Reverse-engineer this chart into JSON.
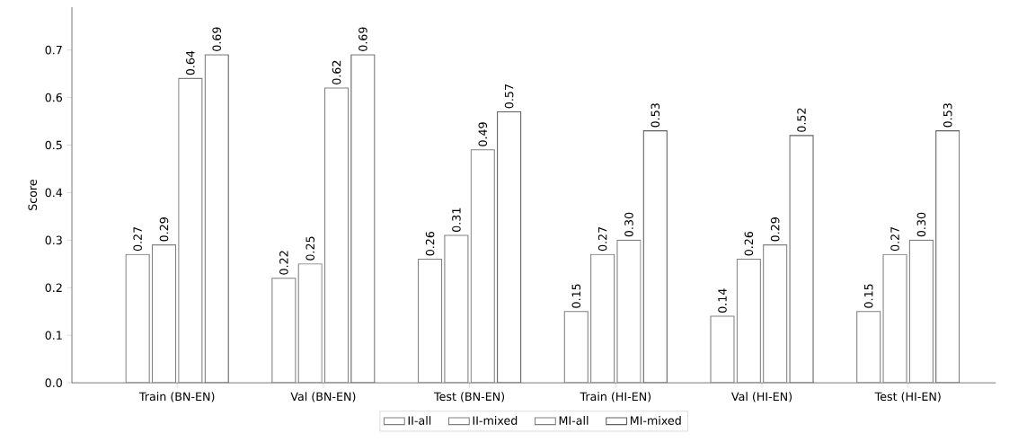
{
  "chart_data": {
    "type": "bar",
    "ylabel": "Score",
    "categories": [
      "Train (BN-EN)",
      "Val (BN-EN)",
      "Test (BN-EN)",
      "Train (HI-EN)",
      "Val (HI-EN)",
      "Test (HI-EN)"
    ],
    "series": [
      {
        "name": "II-all",
        "color": "#808080",
        "values": [
          0.27,
          0.22,
          0.26,
          0.15,
          0.14,
          0.15
        ],
        "value_labels": [
          "0.27",
          "0.22",
          "0.26",
          "0.15",
          "0.14",
          "0.15"
        ]
      },
      {
        "name": "II-mixed",
        "color": "#808080",
        "values": [
          0.29,
          0.25,
          0.31,
          0.27,
          0.26,
          0.27
        ],
        "value_labels": [
          "0.29",
          "0.25",
          "0.31",
          "0.27",
          "0.26",
          "0.27"
        ]
      },
      {
        "name": "MI-all",
        "color": "#808080",
        "values": [
          0.64,
          0.62,
          0.49,
          0.3,
          0.29,
          0.3
        ],
        "value_labels": [
          "0.64",
          "0.62",
          "0.49",
          "0.30",
          "0.29",
          "0.30"
        ]
      },
      {
        "name": "MI-mixed",
        "color": "#606060",
        "values": [
          0.69,
          0.69,
          0.57,
          0.53,
          0.52,
          0.53
        ],
        "value_labels": [
          "0.69",
          "0.69",
          "0.57",
          "0.53",
          "0.52",
          "0.53"
        ]
      }
    ],
    "ylim": [
      0,
      0.79
    ],
    "yticks": [
      {
        "value": 0,
        "label": "0.0"
      },
      0.1,
      0.2,
      0.3,
      0.4,
      0.5,
      0.6,
      0.7
    ],
    "legend": "bottom",
    "grid": false
  }
}
